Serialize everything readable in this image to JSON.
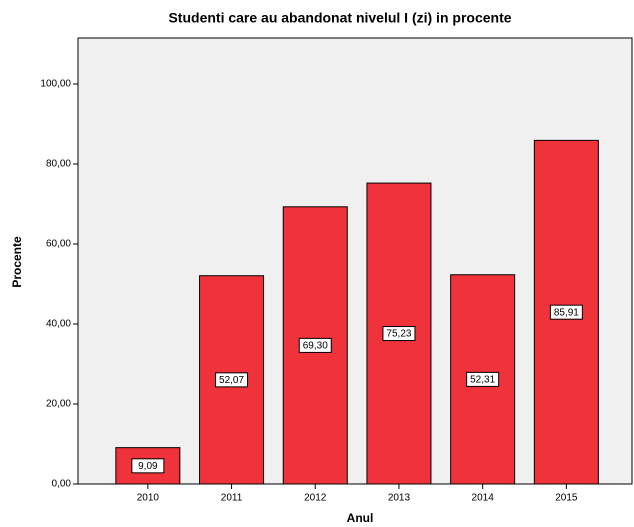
{
  "chart_data": {
    "type": "bar",
    "title": "Studenti care au abandonat nivelul I (zi) in procente",
    "x_label": "Anul",
    "y_label": "Procente",
    "categories": [
      "2010",
      "2011",
      "2012",
      "2013",
      "2014",
      "2015"
    ],
    "values": [
      9.09,
      52.07,
      69.3,
      75.23,
      52.31,
      85.91
    ],
    "value_labels": [
      "9,09",
      "52,07",
      "69,30",
      "75,23",
      "52,31",
      "85,91"
    ],
    "color": "#f0323a",
    "ylim": [
      0,
      111.5
    ],
    "yticks": [
      {
        "value": 0,
        "label": "0,00"
      },
      {
        "value": 20,
        "label": "20,00"
      },
      {
        "value": 40,
        "label": "40,00"
      },
      {
        "value": 60,
        "label": "60,00"
      },
      {
        "value": 80,
        "label": "80,00"
      },
      {
        "value": 100,
        "label": "100,00"
      }
    ]
  }
}
